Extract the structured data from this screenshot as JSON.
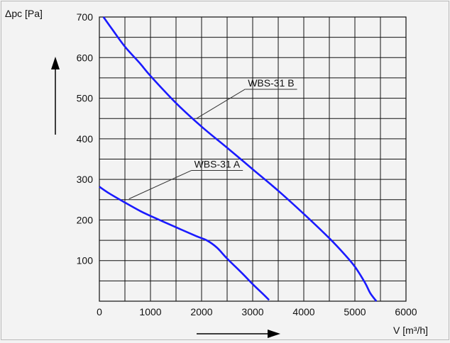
{
  "chart_data": {
    "type": "line",
    "xlabel": "V [m³/h]",
    "ylabel": "Δpc [Pa]",
    "xlim": [
      0,
      6000
    ],
    "ylim": [
      0,
      700
    ],
    "x_ticks": [
      0,
      1000,
      2000,
      3000,
      4000,
      5000,
      6000
    ],
    "y_ticks": [
      100,
      200,
      300,
      400,
      500,
      600,
      700
    ],
    "grid_minor_x_step": 500,
    "grid_minor_y_step": 50,
    "grid": true,
    "series": [
      {
        "name": "WBS-31 B",
        "color": "#1a1aff",
        "x": [
          80,
          250,
          500,
          800,
          1000,
          1500,
          2000,
          2500,
          3000,
          3500,
          4000,
          4500,
          4800,
          5000,
          5200,
          5300,
          5420
        ],
        "y": [
          700,
          670,
          627,
          585,
          555,
          488,
          430,
          378,
          325,
          272,
          215,
          155,
          115,
          85,
          45,
          20,
          0
        ]
      },
      {
        "name": "WBS-31 A",
        "color": "#1a1aff",
        "x": [
          0,
          200,
          500,
          800,
          1000,
          1500,
          1900,
          2100,
          2300,
          2500,
          2800,
          3000,
          3200,
          3320
        ],
        "y": [
          282,
          265,
          243,
          222,
          210,
          182,
          160,
          150,
          132,
          105,
          68,
          42,
          18,
          3
        ]
      }
    ],
    "annotations": [
      {
        "text": "WBS-31 B",
        "anchor_x": 1900,
        "anchor_y": 450,
        "label_x": 2850,
        "label_y": 522
      },
      {
        "text": "WBS-31 A",
        "anchor_x": 580,
        "anchor_y": 252,
        "label_x": 1800,
        "label_y": 322
      }
    ],
    "arrows": {
      "y_axis": "up",
      "x_axis": "right"
    }
  }
}
